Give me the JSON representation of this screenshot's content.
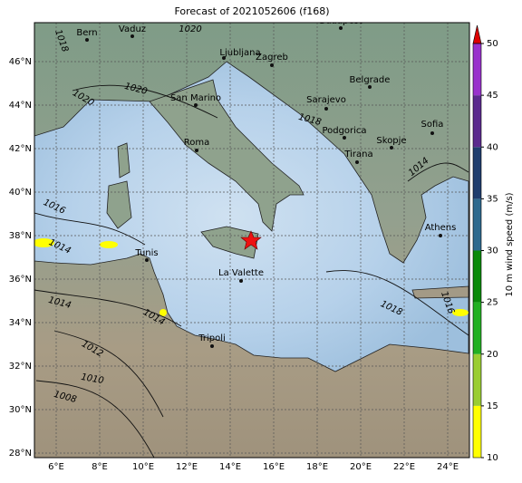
{
  "title": "Forecast of 2021052606 (f168)",
  "map": {
    "lon_ticks": [
      {
        "value": 6,
        "label": "6°E"
      },
      {
        "value": 8,
        "label": "8°E"
      },
      {
        "value": 10,
        "label": "10°E"
      },
      {
        "value": 12,
        "label": "12°E"
      },
      {
        "value": 14,
        "label": "14°E"
      },
      {
        "value": 16,
        "label": "16°E"
      },
      {
        "value": 18,
        "label": "18°E"
      },
      {
        "value": 20,
        "label": "20°E"
      },
      {
        "value": 22,
        "label": "22°E"
      },
      {
        "value": 24,
        "label": "24°E"
      }
    ],
    "lat_ticks": [
      {
        "value": 28,
        "label": "28°N"
      },
      {
        "value": 30,
        "label": "30°N"
      },
      {
        "value": 32,
        "label": "32°N"
      },
      {
        "value": 34,
        "label": "34°N"
      },
      {
        "value": 36,
        "label": "36°N"
      },
      {
        "value": 38,
        "label": "38°N"
      },
      {
        "value": 40,
        "label": "40°N"
      },
      {
        "value": 42,
        "label": "42°N"
      },
      {
        "value": 44,
        "label": "44°N"
      },
      {
        "value": 46,
        "label": "46°N"
      }
    ],
    "cities": [
      "Bern",
      "Vaduz",
      "Budapest",
      "Ljubljana",
      "Zagreb",
      "Belgrade",
      "San Marino",
      "Sarajevo",
      "Podgorica",
      "Sofia",
      "Roma",
      "Skopje",
      "Tirana",
      "Athens",
      "Tunis",
      "La Valette",
      "Tripoli"
    ],
    "isobar_labels": [
      "1018",
      "1020",
      "1020",
      "1020",
      "1018",
      "1016",
      "1014",
      "1014",
      "1014",
      "1012",
      "1010",
      "1008",
      "1018",
      "1016",
      "1014"
    ]
  },
  "colorbar": {
    "label": "10 m wind speed (m/s)",
    "ticks": [
      10,
      15,
      20,
      25,
      30,
      35,
      40,
      45,
      50
    ],
    "colors": [
      "#ffff00",
      "#9acd32",
      "#22b022",
      "#0a8a0a",
      "#2e6a8e",
      "#1f3d6e",
      "#5b2a8e",
      "#9932cc"
    ],
    "extend_color": "#dd0000"
  }
}
